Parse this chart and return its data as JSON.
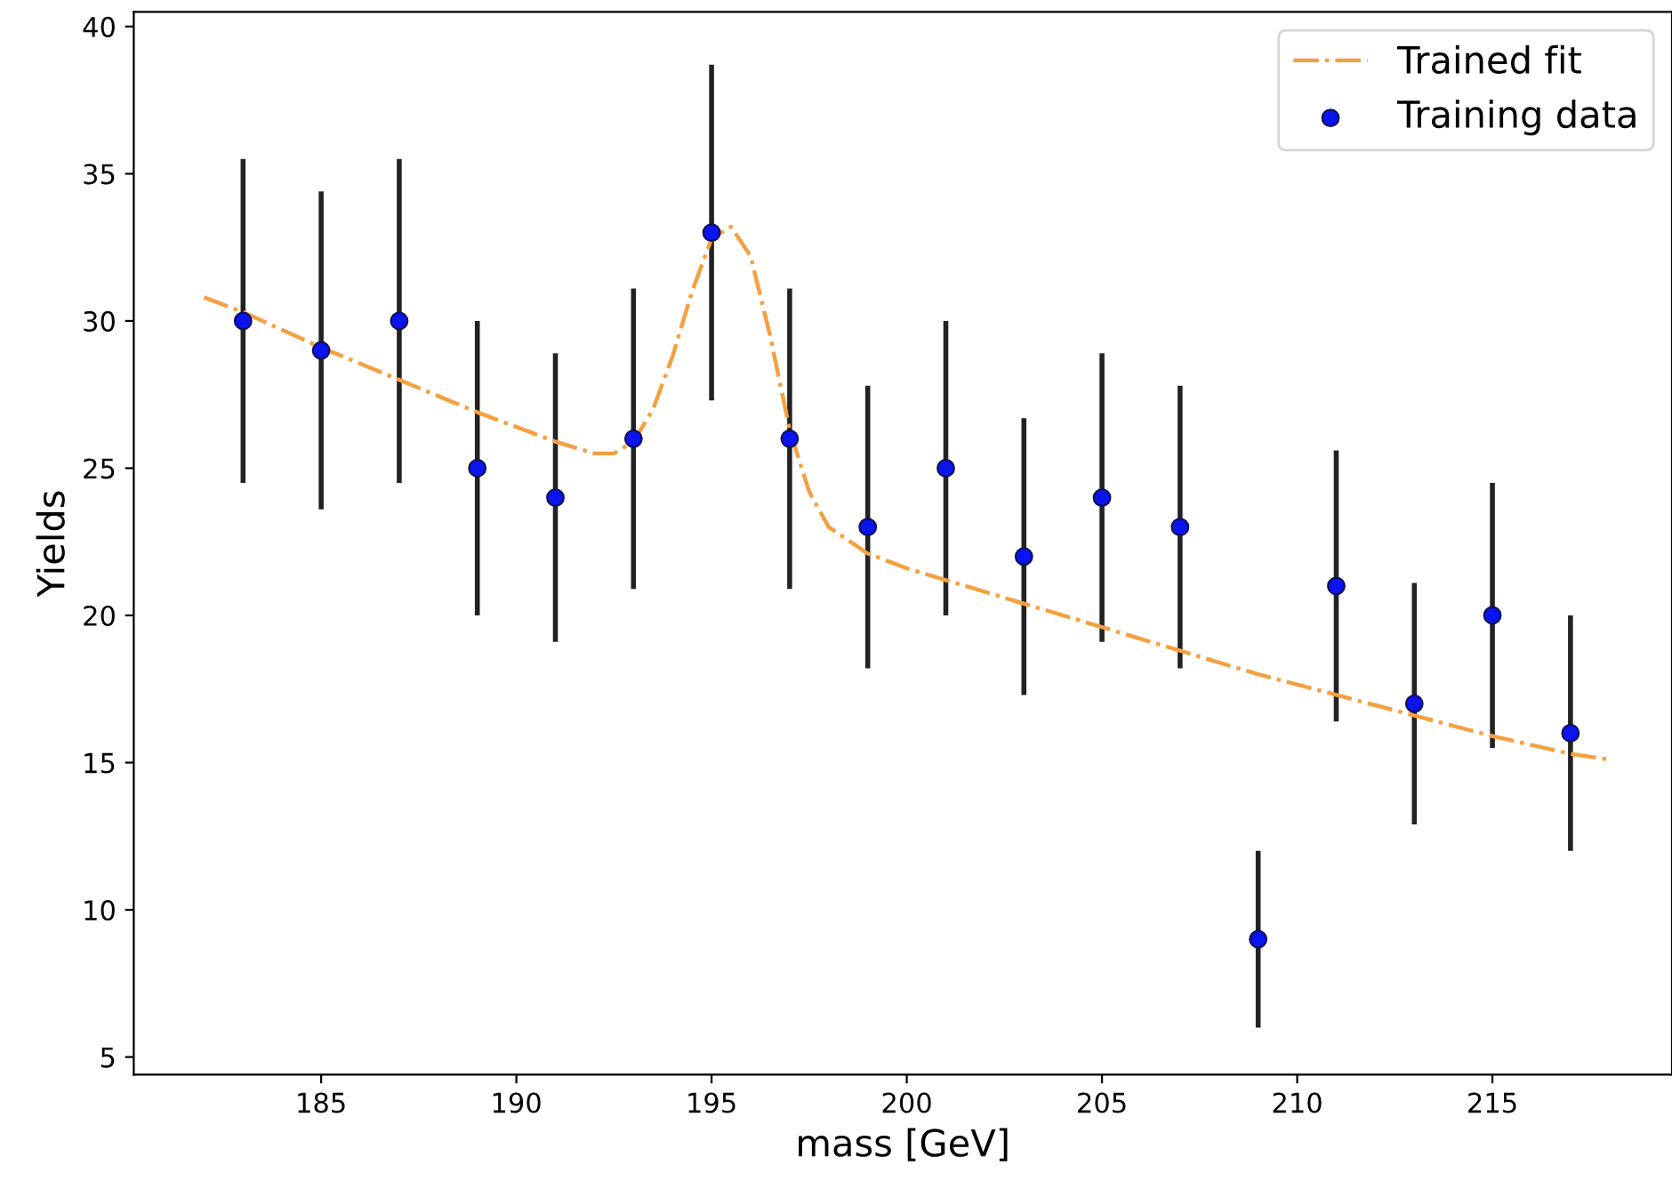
{
  "chart_data": {
    "type": "scatter",
    "xlabel": "mass [GeV]",
    "ylabel": "Yields",
    "xlim": [
      180.2,
      219.6
    ],
    "ylim": [
      4.4,
      40.5
    ],
    "xticks": [
      185,
      190,
      195,
      200,
      205,
      210,
      215
    ],
    "yticks": [
      5,
      10,
      15,
      20,
      25,
      30,
      35,
      40
    ],
    "grid": false,
    "legend": "top right",
    "series": [
      {
        "name": "Trained fit",
        "type": "line",
        "line_style": "dashdot",
        "marker": "none",
        "color": "#f5a040",
        "x": [
          182,
          183,
          185,
          187,
          189,
          191,
          192,
          192.5,
          193,
          193.5,
          194,
          194.5,
          195,
          195.5,
          196,
          196.5,
          197,
          197.5,
          198,
          199,
          200,
          203,
          205,
          207,
          209,
          211,
          213,
          215,
          217,
          218
        ],
        "values": [
          30.8,
          30.3,
          29.1,
          28.0,
          26.9,
          25.9,
          25.5,
          25.5,
          25.9,
          27.0,
          28.8,
          31.0,
          32.8,
          33.2,
          32.2,
          29.5,
          26.3,
          24.2,
          23.0,
          22.1,
          21.6,
          20.4,
          19.6,
          18.8,
          18.0,
          17.3,
          16.6,
          15.9,
          15.3,
          15.1
        ]
      },
      {
        "name": "Training data",
        "marker": "circle",
        "color": "#0a14f0",
        "x": [
          183,
          185,
          187,
          189,
          191,
          193,
          195,
          197,
          199,
          201,
          203,
          205,
          207,
          209,
          211,
          213,
          215,
          217
        ],
        "values": [
          30,
          29,
          30,
          25,
          24,
          26,
          33,
          26,
          23,
          25,
          22,
          24,
          23,
          9,
          21,
          17,
          20,
          16
        ],
        "errors": [
          5.5,
          5.4,
          5.5,
          5,
          4.9,
          5.1,
          5.7,
          5.1,
          4.8,
          5,
          4.7,
          4.9,
          4.8,
          3,
          4.6,
          4.1,
          4.5,
          4
        ]
      }
    ]
  }
}
